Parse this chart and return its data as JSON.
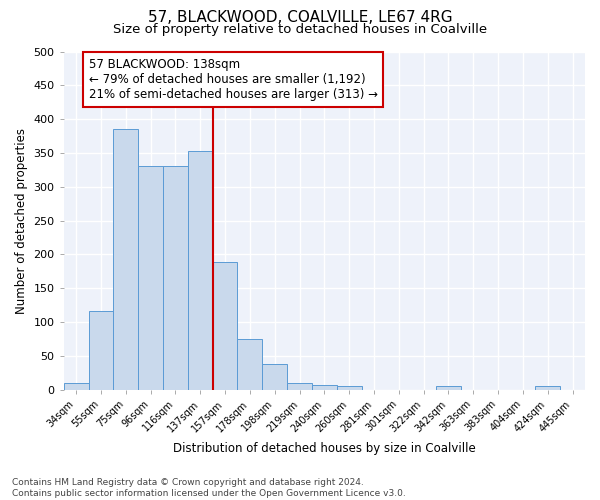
{
  "title1": "57, BLACKWOOD, COALVILLE, LE67 4RG",
  "title2": "Size of property relative to detached houses in Coalville",
  "xlabel": "Distribution of detached houses by size in Coalville",
  "ylabel": "Number of detached properties",
  "footnote": "Contains HM Land Registry data © Crown copyright and database right 2024.\nContains public sector information licensed under the Open Government Licence v3.0.",
  "bin_labels": [
    "34sqm",
    "55sqm",
    "75sqm",
    "96sqm",
    "116sqm",
    "137sqm",
    "157sqm",
    "178sqm",
    "198sqm",
    "219sqm",
    "240sqm",
    "260sqm",
    "281sqm",
    "301sqm",
    "322sqm",
    "342sqm",
    "363sqm",
    "383sqm",
    "404sqm",
    "424sqm",
    "445sqm"
  ],
  "bar_heights": [
    10,
    116,
    385,
    331,
    331,
    353,
    189,
    75,
    38,
    10,
    7,
    5,
    0,
    0,
    0,
    5,
    0,
    0,
    0,
    5,
    0
  ],
  "bar_color": "#c9d9ec",
  "bar_edge_color": "#5b9bd5",
  "vline_x_index": 5.5,
  "vline_color": "#cc0000",
  "annotation_text": "57 BLACKWOOD: 138sqm\n← 79% of detached houses are smaller (1,192)\n21% of semi-detached houses are larger (313) →",
  "annotation_box_color": "#ffffff",
  "annotation_box_edge_color": "#cc0000",
  "ylim": [
    0,
    500
  ],
  "yticks": [
    0,
    50,
    100,
    150,
    200,
    250,
    300,
    350,
    400,
    450,
    500
  ],
  "background_color": "#eef2fa",
  "grid_color": "#ffffff",
  "title1_fontsize": 11,
  "title2_fontsize": 9.5,
  "annotation_fontsize": 8.5,
  "footnote_fontsize": 6.5,
  "xlabel_fontsize": 8.5,
  "ylabel_fontsize": 8.5
}
